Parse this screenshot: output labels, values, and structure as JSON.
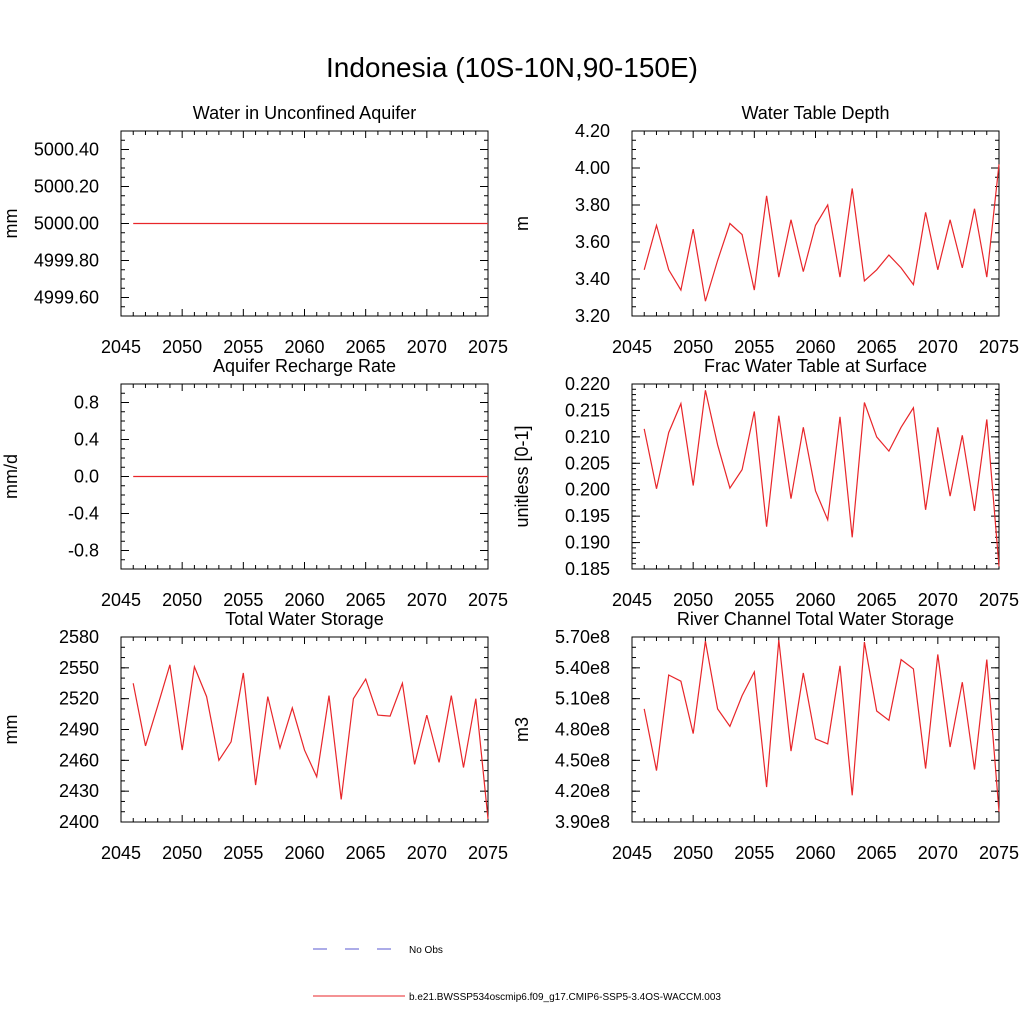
{
  "page_title": "Indonesia (10S-10N,90-150E)",
  "legend": [
    {
      "label": "No Obs",
      "color": "#5a5ad0",
      "style": "dashed"
    },
    {
      "label": "b.e21.BWSSP534oscmip6.f09_g17.CMIP6-SSP5-3.4OS-WACCM.003",
      "color": "#e8262a",
      "style": "solid"
    }
  ],
  "chart_data": [
    {
      "type": "line",
      "title": "Water in Unconfined Aquifer",
      "ylabel": "mm",
      "xlim": [
        2045,
        2075
      ],
      "ylim": [
        4999.5,
        5000.5
      ],
      "xticks": [
        "2045",
        "2050",
        "2055",
        "2060",
        "2065",
        "2070",
        "2075"
      ],
      "yticks": [
        4999.6,
        4999.8,
        5000.0,
        5000.2,
        5000.4
      ],
      "ytick_labels": [
        "4999.60",
        "4999.80",
        "5000.00",
        "5000.20",
        "5000.40"
      ],
      "yminor": 0.05,
      "x": [
        2046,
        2075
      ],
      "values": [
        5000.0,
        5000.0
      ]
    },
    {
      "type": "line",
      "title": "Water Table Depth",
      "ylabel": "m",
      "xlim": [
        2045,
        2075
      ],
      "ylim": [
        3.2,
        4.2
      ],
      "xticks": [
        "2045",
        "2050",
        "2055",
        "2060",
        "2065",
        "2070",
        "2075"
      ],
      "yticks": [
        3.2,
        3.4,
        3.6,
        3.8,
        4.0,
        4.2
      ],
      "ytick_labels": [
        "3.20",
        "3.40",
        "3.60",
        "3.80",
        "4.00",
        "4.20"
      ],
      "yminor": 0.05,
      "x": [
        2046,
        2047,
        2048,
        2049,
        2050,
        2051,
        2052,
        2053,
        2054,
        2055,
        2056,
        2057,
        2058,
        2059,
        2060,
        2061,
        2062,
        2063,
        2064,
        2065,
        2066,
        2067,
        2068,
        2069,
        2070,
        2071,
        2072,
        2073,
        2074,
        2075
      ],
      "values": [
        3.45,
        3.69,
        3.45,
        3.34,
        3.67,
        3.28,
        3.5,
        3.7,
        3.64,
        3.34,
        3.85,
        3.41,
        3.72,
        3.44,
        3.69,
        3.8,
        3.41,
        3.89,
        3.39,
        3.45,
        3.53,
        3.46,
        3.37,
        3.76,
        3.45,
        3.72,
        3.46,
        3.78,
        3.41,
        4.02
      ]
    },
    {
      "type": "line",
      "title": "Aquifer Recharge Rate",
      "ylabel": "mm/d",
      "xlim": [
        2045,
        2075
      ],
      "ylim": [
        -1.0,
        1.0
      ],
      "xticks": [
        "2045",
        "2050",
        "2055",
        "2060",
        "2065",
        "2070",
        "2075"
      ],
      "yticks": [
        -0.8,
        -0.4,
        0.0,
        0.4,
        0.8
      ],
      "ytick_labels": [
        "-0.8",
        "-0.4",
        "0.0",
        "0.4",
        "0.8"
      ],
      "yminor": 0.1,
      "x": [
        2046,
        2075
      ],
      "values": [
        0.0,
        0.0
      ]
    },
    {
      "type": "line",
      "title": "Frac Water Table at Surface",
      "ylabel": "unitless [0-1]",
      "xlim": [
        2045,
        2075
      ],
      "ylim": [
        0.185,
        0.22
      ],
      "xticks": [
        "2045",
        "2050",
        "2055",
        "2060",
        "2065",
        "2070",
        "2075"
      ],
      "yticks": [
        0.185,
        0.19,
        0.195,
        0.2,
        0.205,
        0.21,
        0.215,
        0.22
      ],
      "ytick_labels": [
        "0.185",
        "0.190",
        "0.195",
        "0.200",
        "0.205",
        "0.210",
        "0.215",
        "0.220"
      ],
      "yminor": 0.001,
      "x": [
        2046,
        2047,
        2048,
        2049,
        2050,
        2051,
        2052,
        2053,
        2054,
        2055,
        2056,
        2057,
        2058,
        2059,
        2060,
        2061,
        2062,
        2063,
        2064,
        2065,
        2066,
        2067,
        2068,
        2069,
        2070,
        2071,
        2072,
        2073,
        2074,
        2075
      ],
      "values": [
        0.2115,
        0.2002,
        0.2108,
        0.2163,
        0.2008,
        0.2188,
        0.2085,
        0.2003,
        0.2038,
        0.2148,
        0.193,
        0.214,
        0.1983,
        0.2118,
        0.1998,
        0.1943,
        0.2138,
        0.191,
        0.2165,
        0.21,
        0.2073,
        0.2118,
        0.2155,
        0.1962,
        0.2118,
        0.1988,
        0.2103,
        0.196,
        0.2133,
        0.1855
      ]
    },
    {
      "type": "line",
      "title": "Total Water Storage",
      "ylabel": "mm",
      "xlim": [
        2045,
        2075
      ],
      "ylim": [
        2400,
        2580
      ],
      "xticks": [
        "2045",
        "2050",
        "2055",
        "2060",
        "2065",
        "2070",
        "2075"
      ],
      "yticks": [
        2400,
        2430,
        2460,
        2490,
        2520,
        2550,
        2580
      ],
      "ytick_labels": [
        "2400",
        "2430",
        "2460",
        "2490",
        "2520",
        "2550",
        "2580"
      ],
      "yminor": 10,
      "x": [
        2046,
        2047,
        2048,
        2049,
        2050,
        2051,
        2052,
        2053,
        2054,
        2055,
        2056,
        2057,
        2058,
        2059,
        2060,
        2061,
        2062,
        2063,
        2064,
        2065,
        2066,
        2067,
        2068,
        2069,
        2070,
        2071,
        2072,
        2073,
        2074,
        2075
      ],
      "values": [
        2535,
        2474,
        2513,
        2553,
        2470,
        2551,
        2522,
        2460,
        2478,
        2545,
        2436,
        2522,
        2472,
        2511,
        2470,
        2444,
        2523,
        2422,
        2520,
        2539,
        2504,
        2503,
        2535,
        2456,
        2504,
        2458,
        2523,
        2453,
        2520,
        2403
      ]
    },
    {
      "type": "line",
      "title": "River Channel Total Water Storage",
      "ylabel": "m3",
      "xlim": [
        2045,
        2075
      ],
      "ylim": [
        3.9,
        5.7
      ],
      "ylim_units": "e8",
      "xticks": [
        "2045",
        "2050",
        "2055",
        "2060",
        "2065",
        "2070",
        "2075"
      ],
      "yticks": [
        3.9,
        4.2,
        4.5,
        4.8,
        5.1,
        5.4,
        5.7
      ],
      "ytick_labels": [
        "3.90e8",
        "4.20e8",
        "4.50e8",
        "4.80e8",
        "5.10e8",
        "5.40e8",
        "5.70e8"
      ],
      "yminor": 0.1,
      "x": [
        2046,
        2047,
        2048,
        2049,
        2050,
        2051,
        2052,
        2053,
        2054,
        2055,
        2056,
        2057,
        2058,
        2059,
        2060,
        2061,
        2062,
        2063,
        2064,
        2065,
        2066,
        2067,
        2068,
        2069,
        2070,
        2071,
        2072,
        2073,
        2074,
        2075
      ],
      "values": [
        5.0,
        4.4,
        5.33,
        5.27,
        4.76,
        5.66,
        5.0,
        4.83,
        5.13,
        5.36,
        4.24,
        5.67,
        4.59,
        5.35,
        4.71,
        4.66,
        5.42,
        4.16,
        5.65,
        4.98,
        4.89,
        5.48,
        5.39,
        4.42,
        5.53,
        4.63,
        5.26,
        4.41,
        5.48,
        4.0
      ]
    }
  ]
}
